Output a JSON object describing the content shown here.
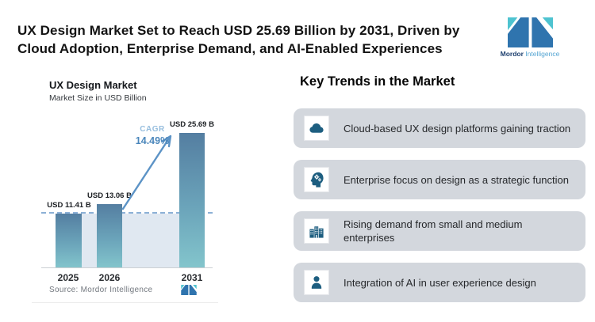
{
  "header": {
    "title_lines": [
      "UX Design Market Set to Reach USD 25.69 Billion by 2031, Driven by",
      "Cloud Adoption, Enterprise Demand, and AI-Enabled Experiences"
    ]
  },
  "brand": {
    "name_bold": "Mordor",
    "name_light": "Intelligence"
  },
  "chart_data": {
    "type": "bar",
    "title": "UX Design Market",
    "subtitle": "Market Size in USD Billion",
    "categories": [
      "2025",
      "2026",
      "2031"
    ],
    "values": [
      11.41,
      13.06,
      25.69
    ],
    "labels": [
      "USD 11.41 B",
      "USD 13.06 B",
      "USD 25.69 B"
    ],
    "unit": "USD Billion",
    "annotation": {
      "label": "CAGR",
      "value": "14.49%"
    },
    "dashed_reference_value": 11.41,
    "source": "Source: Mordor Intelligence",
    "legend": "none",
    "grid": "off"
  },
  "trends": {
    "heading": "Key Trends in the Market",
    "items": [
      {
        "icon": "cloud-icon",
        "text": "Cloud-based UX design platforms gaining traction"
      },
      {
        "icon": "head-gears-icon",
        "text": "Enterprise focus on design as a strategic function"
      },
      {
        "icon": "buildings-icon",
        "text": "Rising demand from small and medium enterprises"
      },
      {
        "icon": "person-icon",
        "text": "Integration of AI in user experience design"
      }
    ]
  },
  "colors": {
    "bar_top": "#547ea1",
    "bar_bottom": "#83c5cc",
    "area_fill": "#e0e8f1",
    "dashed_line": "#8cb0d6",
    "arrow": "#5c93c6",
    "cagr_value": "#4a86bb",
    "cagr_label": "#97bede",
    "card_background": "#d3d7dd",
    "trend_icon": "#1d5e80",
    "logo_dark_blue": "#2f74ae",
    "logo_teal": "#4ec3d0",
    "logo_text_dark": "#1d3f6e",
    "logo_text_light": "#55a5d3"
  }
}
